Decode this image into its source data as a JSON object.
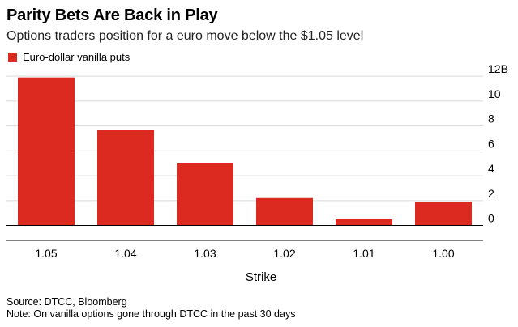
{
  "chart_data": {
    "type": "bar",
    "title": "Parity Bets Are Back in Play",
    "subtitle": "Options traders position for a euro move below the $1.05 level",
    "xlabel": "Strike",
    "ylabel": "",
    "categories": [
      "1.05",
      "1.04",
      "1.03",
      "1.02",
      "1.01",
      "1.00"
    ],
    "series": [
      {
        "name": "Euro-dollar vanilla puts",
        "values": [
          11.9,
          7.7,
          5.0,
          2.2,
          0.5,
          1.9
        ],
        "color": "#dd2a21"
      }
    ],
    "ylim": [
      -1.2,
      12.4
    ],
    "yticks": [
      {
        "value": 12,
        "label": "12B"
      },
      {
        "value": 10,
        "label": "10"
      },
      {
        "value": 8,
        "label": "8"
      },
      {
        "value": 6,
        "label": "6"
      },
      {
        "value": 4,
        "label": "4"
      },
      {
        "value": 2,
        "label": "2"
      },
      {
        "value": 0,
        "label": "0"
      }
    ],
    "grid": true,
    "y_axis_position": "right",
    "legend_position": "top-left"
  },
  "footer": {
    "source": "Source: DTCC, Bloomberg",
    "note": "Note: On vanilla options gone through DTCC in the past 30 days"
  }
}
